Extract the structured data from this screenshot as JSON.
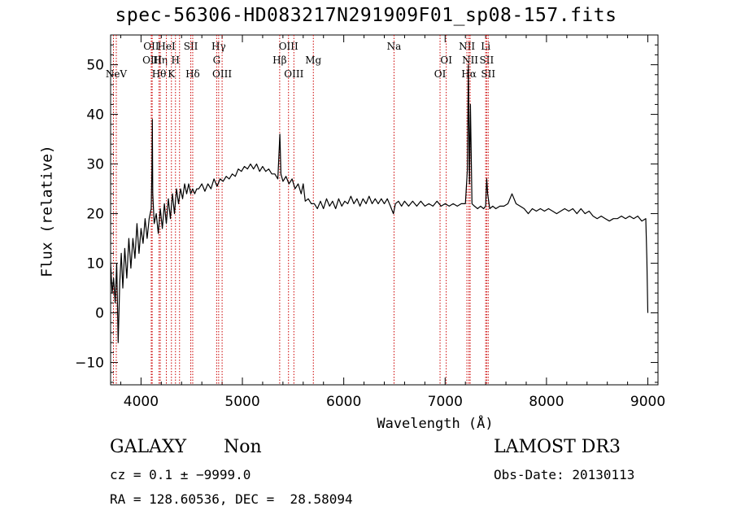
{
  "chart_data": {
    "type": "line",
    "title": "spec-56306-HD083217N291909F01_sp08-157.fits",
    "xlabel": "Wavelength (Å)",
    "ylabel": "Flux (relative)",
    "xlim": [
      3700,
      9100
    ],
    "ylim": [
      -14.5,
      56
    ],
    "x_ticks": [
      4000,
      5000,
      6000,
      7000,
      8000,
      9000
    ],
    "y_ticks": [
      -10,
      0,
      10,
      20,
      30,
      40,
      50
    ],
    "grid": false,
    "series": [
      {
        "values": [
          [
            3700,
            10
          ],
          [
            3715,
            4
          ],
          [
            3730,
            7
          ],
          [
            3745,
            2
          ],
          [
            3760,
            10
          ],
          [
            3775,
            -6
          ],
          [
            3790,
            6
          ],
          [
            3805,
            12
          ],
          [
            3820,
            5
          ],
          [
            3840,
            13
          ],
          [
            3860,
            7
          ],
          [
            3880,
            15
          ],
          [
            3900,
            9
          ],
          [
            3920,
            15
          ],
          [
            3940,
            11
          ],
          [
            3960,
            18
          ],
          [
            3980,
            12
          ],
          [
            4000,
            17
          ],
          [
            4020,
            14
          ],
          [
            4040,
            19
          ],
          [
            4060,
            15
          ],
          [
            4080,
            19
          ],
          [
            4100,
            21
          ],
          [
            4108,
            29
          ],
          [
            4112,
            39
          ],
          [
            4116,
            24
          ],
          [
            4130,
            18
          ],
          [
            4150,
            20
          ],
          [
            4170,
            16
          ],
          [
            4190,
            21
          ],
          [
            4210,
            17
          ],
          [
            4230,
            22
          ],
          [
            4250,
            18
          ],
          [
            4270,
            23
          ],
          [
            4290,
            19
          ],
          [
            4310,
            24
          ],
          [
            4330,
            20
          ],
          [
            4350,
            25
          ],
          [
            4370,
            22
          ],
          [
            4390,
            25
          ],
          [
            4410,
            23
          ],
          [
            4430,
            26
          ],
          [
            4450,
            24
          ],
          [
            4470,
            26
          ],
          [
            4490,
            24
          ],
          [
            4510,
            25
          ],
          [
            4530,
            24
          ],
          [
            4550,
            25
          ],
          [
            4570,
            25
          ],
          [
            4600,
            26
          ],
          [
            4630,
            24.5
          ],
          [
            4660,
            26
          ],
          [
            4690,
            25
          ],
          [
            4720,
            27
          ],
          [
            4750,
            25.5
          ],
          [
            4780,
            27
          ],
          [
            4810,
            26.5
          ],
          [
            4840,
            27.5
          ],
          [
            4870,
            27
          ],
          [
            4900,
            28
          ],
          [
            4930,
            27.5
          ],
          [
            4960,
            29
          ],
          [
            4990,
            28.5
          ],
          [
            5020,
            29.5
          ],
          [
            5050,
            29
          ],
          [
            5080,
            30
          ],
          [
            5110,
            29
          ],
          [
            5140,
            30
          ],
          [
            5170,
            28.5
          ],
          [
            5200,
            29.5
          ],
          [
            5230,
            28.5
          ],
          [
            5260,
            29
          ],
          [
            5290,
            28
          ],
          [
            5320,
            28
          ],
          [
            5350,
            27
          ],
          [
            5370,
            36
          ],
          [
            5380,
            28
          ],
          [
            5400,
            26.5
          ],
          [
            5430,
            27.5
          ],
          [
            5460,
            26
          ],
          [
            5490,
            27
          ],
          [
            5520,
            25
          ],
          [
            5550,
            26
          ],
          [
            5580,
            24
          ],
          [
            5600,
            26
          ],
          [
            5620,
            22.5
          ],
          [
            5650,
            23
          ],
          [
            5680,
            22
          ],
          [
            5710,
            22
          ],
          [
            5740,
            21
          ],
          [
            5770,
            22.5
          ],
          [
            5800,
            21
          ],
          [
            5830,
            23
          ],
          [
            5860,
            21.5
          ],
          [
            5890,
            22.5
          ],
          [
            5920,
            21
          ],
          [
            5950,
            23
          ],
          [
            5980,
            21.5
          ],
          [
            6010,
            22.5
          ],
          [
            6040,
            22
          ],
          [
            6070,
            23.5
          ],
          [
            6100,
            22
          ],
          [
            6130,
            23
          ],
          [
            6160,
            21.5
          ],
          [
            6190,
            23
          ],
          [
            6220,
            22
          ],
          [
            6250,
            23.5
          ],
          [
            6280,
            22
          ],
          [
            6310,
            23
          ],
          [
            6340,
            22
          ],
          [
            6370,
            23
          ],
          [
            6400,
            22
          ],
          [
            6430,
            23
          ],
          [
            6460,
            21.5
          ],
          [
            6490,
            20
          ],
          [
            6510,
            22
          ],
          [
            6540,
            22.5
          ],
          [
            6570,
            21.5
          ],
          [
            6600,
            22.5
          ],
          [
            6640,
            21.5
          ],
          [
            6680,
            22.5
          ],
          [
            6720,
            21.5
          ],
          [
            6760,
            22.5
          ],
          [
            6800,
            21.5
          ],
          [
            6840,
            22
          ],
          [
            6880,
            21.5
          ],
          [
            6920,
            22.5
          ],
          [
            6960,
            21.5
          ],
          [
            7000,
            22
          ],
          [
            7040,
            21.5
          ],
          [
            7080,
            22
          ],
          [
            7120,
            21.5
          ],
          [
            7160,
            22
          ],
          [
            7200,
            22
          ],
          [
            7220,
            29
          ],
          [
            7230,
            50
          ],
          [
            7240,
            26
          ],
          [
            7250,
            42
          ],
          [
            7265,
            22
          ],
          [
            7290,
            21.5
          ],
          [
            7320,
            21
          ],
          [
            7350,
            21.5
          ],
          [
            7380,
            21
          ],
          [
            7400,
            21.5
          ],
          [
            7410,
            27
          ],
          [
            7420,
            24
          ],
          [
            7440,
            21
          ],
          [
            7470,
            21.5
          ],
          [
            7500,
            21
          ],
          [
            7540,
            21.5
          ],
          [
            7580,
            21.5
          ],
          [
            7620,
            22
          ],
          [
            7660,
            24
          ],
          [
            7700,
            22
          ],
          [
            7740,
            21.5
          ],
          [
            7780,
            21
          ],
          [
            7820,
            20
          ],
          [
            7860,
            21
          ],
          [
            7900,
            20.5
          ],
          [
            7940,
            21
          ],
          [
            7980,
            20.5
          ],
          [
            8020,
            21
          ],
          [
            8060,
            20.5
          ],
          [
            8100,
            20
          ],
          [
            8140,
            20.5
          ],
          [
            8180,
            21
          ],
          [
            8220,
            20.5
          ],
          [
            8260,
            21
          ],
          [
            8300,
            20
          ],
          [
            8340,
            21
          ],
          [
            8380,
            20
          ],
          [
            8420,
            20.5
          ],
          [
            8460,
            19.5
          ],
          [
            8500,
            19
          ],
          [
            8540,
            19.5
          ],
          [
            8580,
            19
          ],
          [
            8620,
            18.5
          ],
          [
            8660,
            19
          ],
          [
            8700,
            19
          ],
          [
            8740,
            19.5
          ],
          [
            8780,
            19
          ],
          [
            8820,
            19.5
          ],
          [
            8860,
            19
          ],
          [
            8900,
            19.5
          ],
          [
            8940,
            18.5
          ],
          [
            8980,
            19
          ],
          [
            8990,
            11
          ],
          [
            9000,
            0
          ]
        ]
      }
    ],
    "lines": [
      {
        "x": 3756,
        "label": "NeV",
        "row": 3
      },
      {
        "x": 3728,
        "label": "",
        "row": 0
      },
      {
        "x": 4101,
        "label": "OII",
        "row": 1
      },
      {
        "x": 4110,
        "label": "OIII",
        "row": 2
      },
      {
        "x": 4178,
        "label": "Hθ",
        "row": 3
      },
      {
        "x": 4190,
        "label": "Hη",
        "row": 2
      },
      {
        "x": 4250,
        "label": "HeI",
        "row": 1
      },
      {
        "x": 4300,
        "label": "K",
        "row": 3
      },
      {
        "x": 4340,
        "label": "H",
        "row": 2
      },
      {
        "x": 4380,
        "label": "",
        "row": 0
      },
      {
        "x": 4491,
        "label": "SII",
        "row": 1
      },
      {
        "x": 4510,
        "label": "Hδ",
        "row": 3
      },
      {
        "x": 4746,
        "label": "G",
        "row": 2
      },
      {
        "x": 4766,
        "label": "Hγ",
        "row": 1
      },
      {
        "x": 4800,
        "label": "OIII",
        "row": 3
      },
      {
        "x": 5368,
        "label": "Hβ",
        "row": 2
      },
      {
        "x": 5455,
        "label": "OIII",
        "row": 1
      },
      {
        "x": 5508,
        "label": "OIII",
        "row": 3
      },
      {
        "x": 5700,
        "label": "Mg",
        "row": 2
      },
      {
        "x": 6496,
        "label": "Na",
        "row": 1
      },
      {
        "x": 6950,
        "label": "OI",
        "row": 3
      },
      {
        "x": 7011,
        "label": "OI",
        "row": 2
      },
      {
        "x": 7215,
        "label": "NII",
        "row": 1
      },
      {
        "x": 7235,
        "label": "Hα",
        "row": 3
      },
      {
        "x": 7247,
        "label": "NII",
        "row": 2
      },
      {
        "x": 7400,
        "label": "Li",
        "row": 1
      },
      {
        "x": 7410,
        "label": "SII",
        "row": 2
      },
      {
        "x": 7425,
        "label": "SII",
        "row": 3
      }
    ]
  },
  "info": {
    "class": "GALAXY",
    "subclass": "Non",
    "survey": "LAMOST DR3",
    "cz_line": "cz = 0.1 ± −9999.0",
    "obs_date": "Obs-Date: 20130113",
    "radec": "RA = 128.60536, DEC =  28.58094"
  },
  "colors": {
    "line_marker": "#cc0000",
    "spectrum": "#000000"
  }
}
